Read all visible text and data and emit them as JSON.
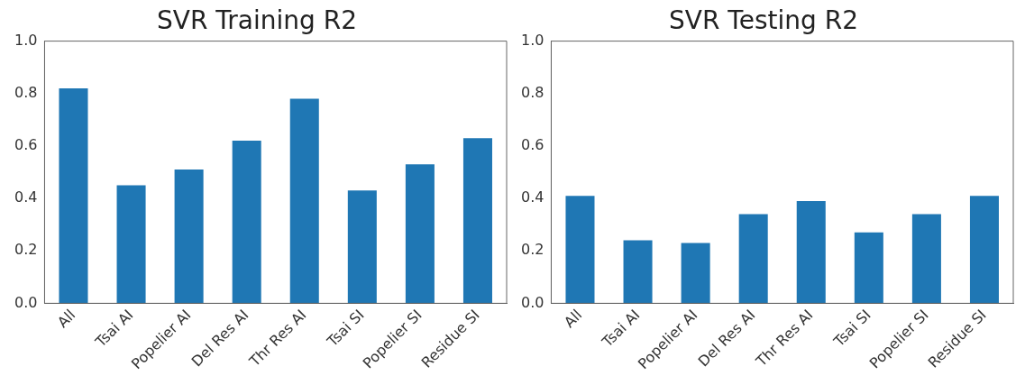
{
  "chart_data": [
    {
      "type": "bar",
      "title": "SVR Training R2",
      "categories": [
        "All",
        "Tsai AI",
        "Popelier AI",
        "Del Res AI",
        "Thr Res AI",
        "Tsai SI",
        "Popelier SI",
        "Residue SI"
      ],
      "values": [
        0.82,
        0.45,
        0.51,
        0.62,
        0.78,
        0.43,
        0.53,
        0.63
      ],
      "color": "#1f77b4",
      "ylim": [
        0,
        1
      ],
      "yticks": [
        {
          "value": 0,
          "label": "0.0"
        },
        {
          "value": 0.2,
          "label": "0.2"
        },
        {
          "value": 0.4,
          "label": "0.4"
        },
        {
          "value": 0.6,
          "label": "0.6"
        },
        {
          "value": 0.8,
          "label": "0.8"
        },
        {
          "value": 1,
          "label": "1.0"
        }
      ],
      "grid": false,
      "legend": false
    },
    {
      "type": "bar",
      "title": "SVR Testing R2",
      "categories": [
        "All",
        "Tsai AI",
        "Popelier AI",
        "Del Res AI",
        "Thr Res AI",
        "Tsai SI",
        "Popelier SI",
        "Residue SI"
      ],
      "values": [
        0.41,
        0.24,
        0.23,
        0.34,
        0.39,
        0.27,
        0.34,
        0.41
      ],
      "color": "#1f77b4",
      "ylim": [
        0,
        1
      ],
      "yticks": [
        {
          "value": 0,
          "label": "0.0"
        },
        {
          "value": 0.2,
          "label": "0.2"
        },
        {
          "value": 0.4,
          "label": "0.4"
        },
        {
          "value": 0.6,
          "label": "0.6"
        },
        {
          "value": 0.8,
          "label": "0.8"
        },
        {
          "value": 1,
          "label": "1.0"
        }
      ],
      "grid": false,
      "legend": false
    }
  ]
}
